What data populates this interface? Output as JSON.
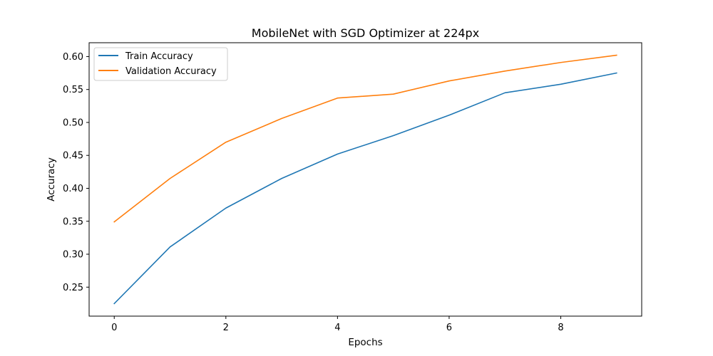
{
  "chart_data": {
    "type": "line",
    "title": "MobileNet with SGD Optimizer at 224px",
    "xlabel": "Epochs",
    "ylabel": "Accuracy",
    "x": [
      0,
      1,
      2,
      3,
      4,
      5,
      6,
      7,
      8,
      9
    ],
    "xlim": [
      -0.45,
      9.45
    ],
    "ylim": [
      0.206,
      0.621
    ],
    "xticks": [
      0,
      2,
      4,
      6,
      8
    ],
    "xtick_labels": [
      "0",
      "2",
      "4",
      "6",
      "8"
    ],
    "yticks": [
      0.25,
      0.3,
      0.35,
      0.4,
      0.45,
      0.5,
      0.55,
      0.6
    ],
    "ytick_labels": [
      "0.25",
      "0.30",
      "0.35",
      "0.40",
      "0.45",
      "0.50",
      "0.55",
      "0.60"
    ],
    "grid": false,
    "legend_position": "top-left",
    "series": [
      {
        "name": "Train Accuracy",
        "color": "#1f77b4",
        "values": [
          0.225,
          0.311,
          0.37,
          0.415,
          0.452,
          0.48,
          0.511,
          0.545,
          0.558,
          0.575
        ]
      },
      {
        "name": "Validation Accuracy",
        "color": "#ff7f0e",
        "values": [
          0.349,
          0.415,
          0.47,
          0.506,
          0.537,
          0.543,
          0.563,
          0.578,
          0.591,
          0.602
        ]
      }
    ]
  }
}
